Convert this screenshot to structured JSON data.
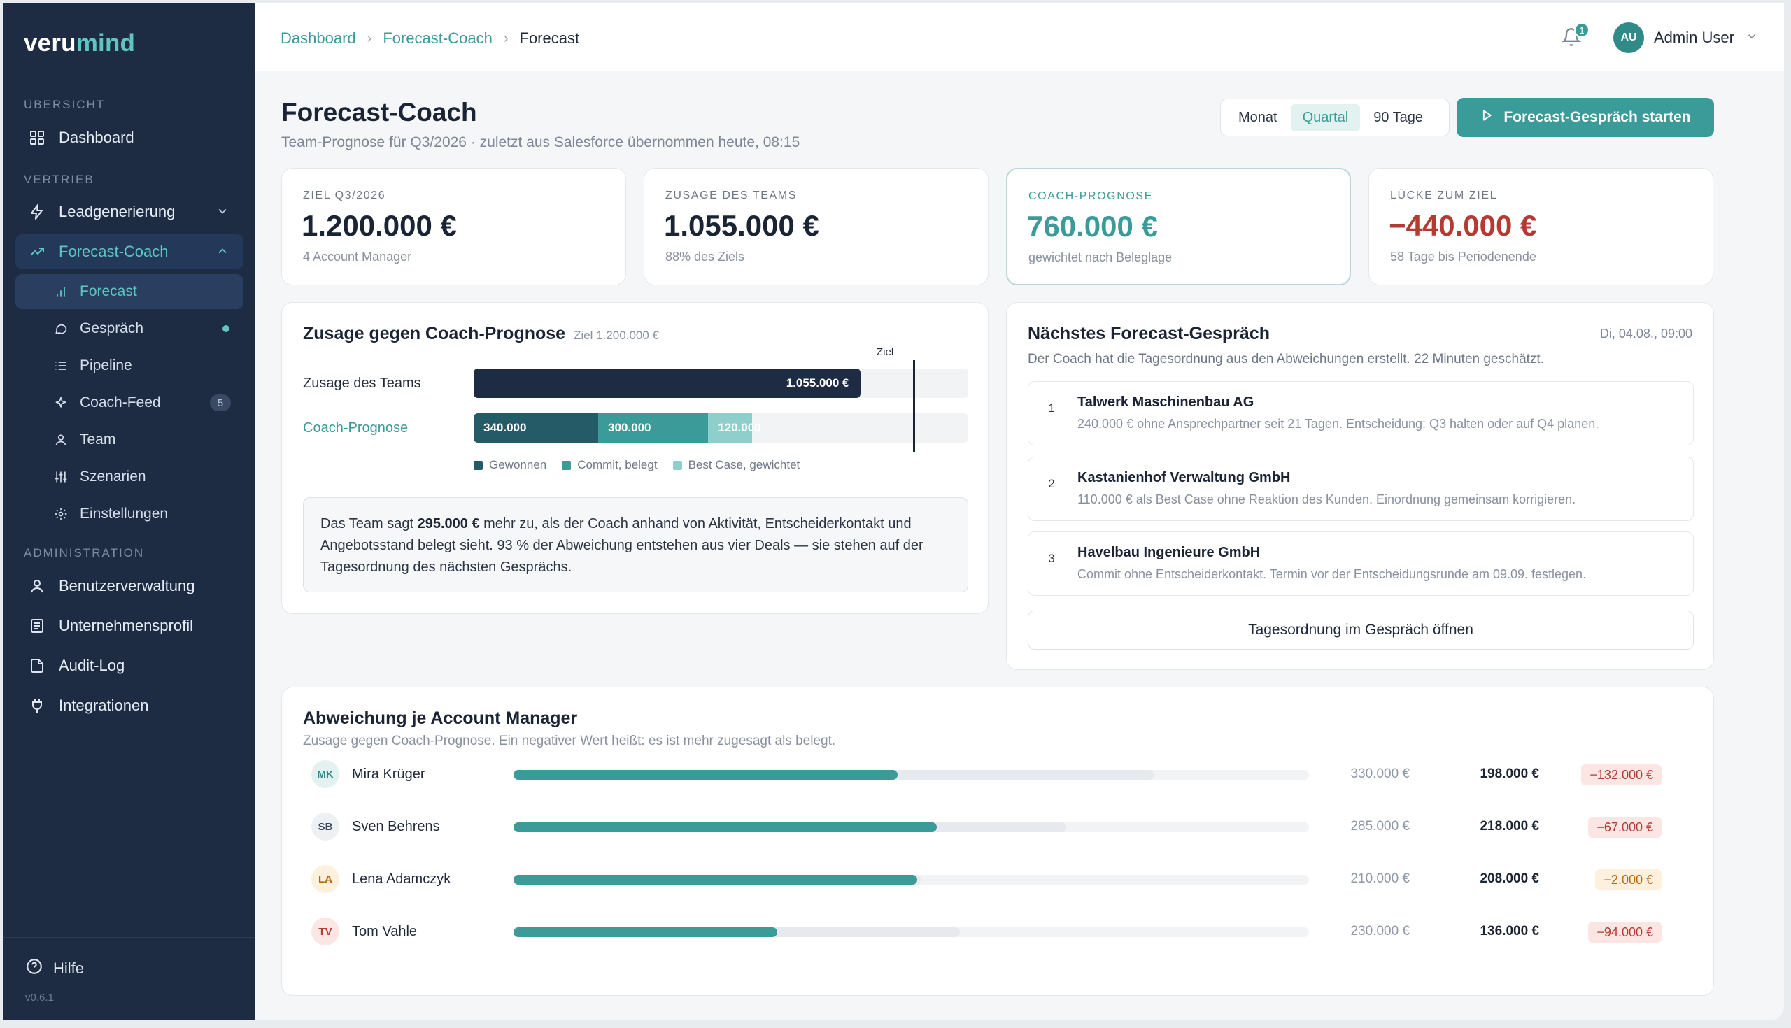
{
  "app": {
    "logo_part1": "veru",
    "logo_part2": "mind",
    "version": "v0.6.1"
  },
  "sidebar": {
    "section_overview": "ÜBERSICHT",
    "section_sales": "VERTRIEB",
    "section_admin": "ADMINISTRATION",
    "dashboard": "Dashboard",
    "lead": "Leadgenerierung",
    "forecast_coach": "Forecast-Coach",
    "sub": {
      "forecast": "Forecast",
      "gespraech": "Gespräch",
      "pipeline": "Pipeline",
      "coach_feed": "Coach-Feed",
      "coach_feed_count": "5",
      "team": "Team",
      "szenarien": "Szenarien",
      "einstellungen": "Einstellungen"
    },
    "admin": {
      "users": "Benutzerverwaltung",
      "company": "Unternehmensprofil",
      "audit": "Audit-Log",
      "integrations": "Integrationen"
    },
    "help": "Hilfe"
  },
  "topbar": {
    "crumb1": "Dashboard",
    "crumb2": "Forecast-Coach",
    "crumb3": "Forecast",
    "notifications": "1",
    "user_initials": "AU",
    "user_name": "Admin User"
  },
  "header": {
    "title": "Forecast-Coach",
    "subtitle": "Team-Prognose für Q3/2026 · zuletzt aus Salesforce übernommen heute, 08:15",
    "period_options": [
      "Monat",
      "Quartal",
      "90 Tage"
    ],
    "period_selected": "Quartal",
    "cta": "Forecast-Gespräch starten"
  },
  "kpis": [
    {
      "label": "ZIEL Q3/2026",
      "value": "1.200.000 €",
      "hint": "4 Account Manager"
    },
    {
      "label": "ZUSAGE DES TEAMS",
      "value": "1.055.000 €",
      "hint": "88% des Ziels"
    },
    {
      "label": "COACH-PROGNOSE",
      "value": "760.000 €",
      "hint": "gewichtet nach Beleglage"
    },
    {
      "label": "LÜCKE ZUM ZIEL",
      "value": "−440.000 €",
      "hint": "58 Tage bis Periodenende"
    }
  ],
  "commit_card": {
    "title": "Zusage gegen Coach-Prognose",
    "goal_hint": "Ziel 1.200.000 €",
    "goal_marker": "Ziel",
    "row1_label": "Zusage des Teams",
    "row2_label": "Coach-Prognose",
    "legend": [
      "Gewonnen",
      "Commit, belegt",
      "Best Case, gewichtet"
    ],
    "note_pre": "Das Team sagt ",
    "note_bold": "295.000 €",
    "note_post": " mehr zu, als der Coach anhand von Aktivität, Entscheiderkontakt und Angebotsstand belegt sieht. 93 % der Abweichung entstehen aus vier Deals — sie stehen auf der Tagesordnung des nächsten Gesprächs."
  },
  "chart_data": {
    "type": "bar",
    "title": "Zusage gegen Coach-Prognose",
    "axis_max": 1350000,
    "goal": 1200000,
    "commit": {
      "value": 1055000,
      "label": "1.055.000 €"
    },
    "forecast_segments": [
      {
        "name": "Gewonnen",
        "value": 340000,
        "label": "340.000",
        "color": "#245b66"
      },
      {
        "name": "Commit, belegt",
        "value": 300000,
        "label": "300.000",
        "color": "#3a9b98"
      },
      {
        "name": "Best Case, gewichtet",
        "value": 120000,
        "label": "120.000",
        "color": "#8fcfcb"
      }
    ],
    "commit_color": "#1d2b43"
  },
  "meeting": {
    "title": "Nächstes Forecast-Gespräch",
    "date": "Di, 04.08., 09:00",
    "subtitle": "Der Coach hat die Tagesordnung aus den Abweichungen erstellt. 22 Minuten geschätzt.",
    "items": [
      {
        "num": "1",
        "title": "Talwerk Maschinenbau AG",
        "desc": "240.000 € ohne Ansprechpartner seit 21 Tagen. Entscheidung: Q3 halten oder auf Q4 planen."
      },
      {
        "num": "2",
        "title": "Kastanienhof Verwaltung GmbH",
        "desc": "110.000 € als Best Case ohne Reaktion des Kunden. Einordnung gemeinsam korrigieren."
      },
      {
        "num": "3",
        "title": "Havelbau Ingenieure GmbH",
        "desc": "Commit ohne Entscheiderkontakt. Termin vor der Entscheidungsrunde am 09.09. festlegen."
      }
    ],
    "open_button": "Tagesordnung im Gespräch öffnen"
  },
  "deviation": {
    "title": "Abweichung je Account Manager",
    "subtitle": "Zusage gegen Coach-Prognose. Ein negativer Wert heißt: es ist mehr zugesagt als belegt.",
    "scale_max": 410000,
    "rows": [
      {
        "initials": "MK",
        "name": "Mira Krüger",
        "commit": 330000,
        "forecast": 198000,
        "commit_label": "330.000 €",
        "forecast_label": "198.000 €",
        "gap_label": "−132.000 €",
        "gap_tone": "red",
        "av_bg": "#e4f1f1",
        "av_fg": "#2f8a88"
      },
      {
        "initials": "SB",
        "name": "Sven Behrens",
        "commit": 285000,
        "forecast": 218000,
        "commit_label": "285.000 €",
        "forecast_label": "218.000 €",
        "gap_label": "−67.000 €",
        "gap_tone": "red",
        "av_bg": "#eef1f4",
        "av_fg": "#3c4a5e"
      },
      {
        "initials": "LA",
        "name": "Lena Adamczyk",
        "commit": 210000,
        "forecast": 208000,
        "commit_label": "210.000 €",
        "forecast_label": "208.000 €",
        "gap_label": "−2.000 €",
        "gap_tone": "amber",
        "av_bg": "#fdf0dc",
        "av_fg": "#b8650f"
      },
      {
        "initials": "TV",
        "name": "Tom Vahle",
        "commit": 230000,
        "forecast": 136000,
        "commit_label": "230.000 €",
        "forecast_label": "136.000 €",
        "gap_label": "−94.000 €",
        "gap_tone": "red",
        "av_bg": "#fce6e4",
        "av_fg": "#b43a32"
      }
    ]
  }
}
